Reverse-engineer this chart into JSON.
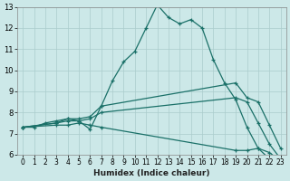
{
  "xlabel": "Humidex (Indice chaleur)",
  "bg_color": "#cce8e8",
  "grid_color": "#aacccc",
  "line_color": "#1a7068",
  "xlim": [
    -0.5,
    23.5
  ],
  "ylim": [
    6,
    13
  ],
  "xticks": [
    0,
    1,
    2,
    3,
    4,
    5,
    6,
    7,
    8,
    9,
    10,
    11,
    12,
    13,
    14,
    15,
    16,
    17,
    18,
    19,
    20,
    21,
    22,
    23
  ],
  "yticks": [
    6,
    7,
    8,
    9,
    10,
    11,
    12,
    13
  ],
  "curves": [
    {
      "x": [
        0,
        1,
        2,
        3,
        4,
        5,
        6,
        7,
        8,
        9,
        10,
        11,
        12,
        13,
        14,
        15,
        16,
        17,
        18,
        19,
        20,
        21,
        22,
        23
      ],
      "y": [
        7.3,
        7.3,
        7.5,
        7.6,
        7.7,
        7.6,
        7.2,
        8.3,
        9.5,
        10.4,
        10.9,
        12.0,
        13.1,
        12.5,
        12.2,
        12.4,
        12.0,
        10.5,
        9.4,
        8.6,
        7.3,
        6.3,
        5.8,
        5.7
      ]
    },
    {
      "x": [
        0,
        3,
        4,
        5,
        6,
        7,
        19,
        20,
        21,
        22,
        23
      ],
      "y": [
        7.3,
        7.5,
        7.7,
        7.7,
        7.8,
        8.3,
        9.4,
        8.7,
        8.5,
        7.4,
        6.3
      ]
    },
    {
      "x": [
        0,
        3,
        4,
        5,
        6,
        7,
        19,
        20,
        21,
        22,
        23
      ],
      "y": [
        7.3,
        7.5,
        7.6,
        7.6,
        7.7,
        8.0,
        8.7,
        8.5,
        7.5,
        6.5,
        5.8
      ]
    },
    {
      "x": [
        0,
        3,
        4,
        5,
        6,
        7,
        19,
        20,
        21,
        22,
        23
      ],
      "y": [
        7.3,
        7.4,
        7.4,
        7.5,
        7.4,
        7.3,
        6.2,
        6.2,
        6.3,
        6.1,
        5.7
      ]
    }
  ]
}
